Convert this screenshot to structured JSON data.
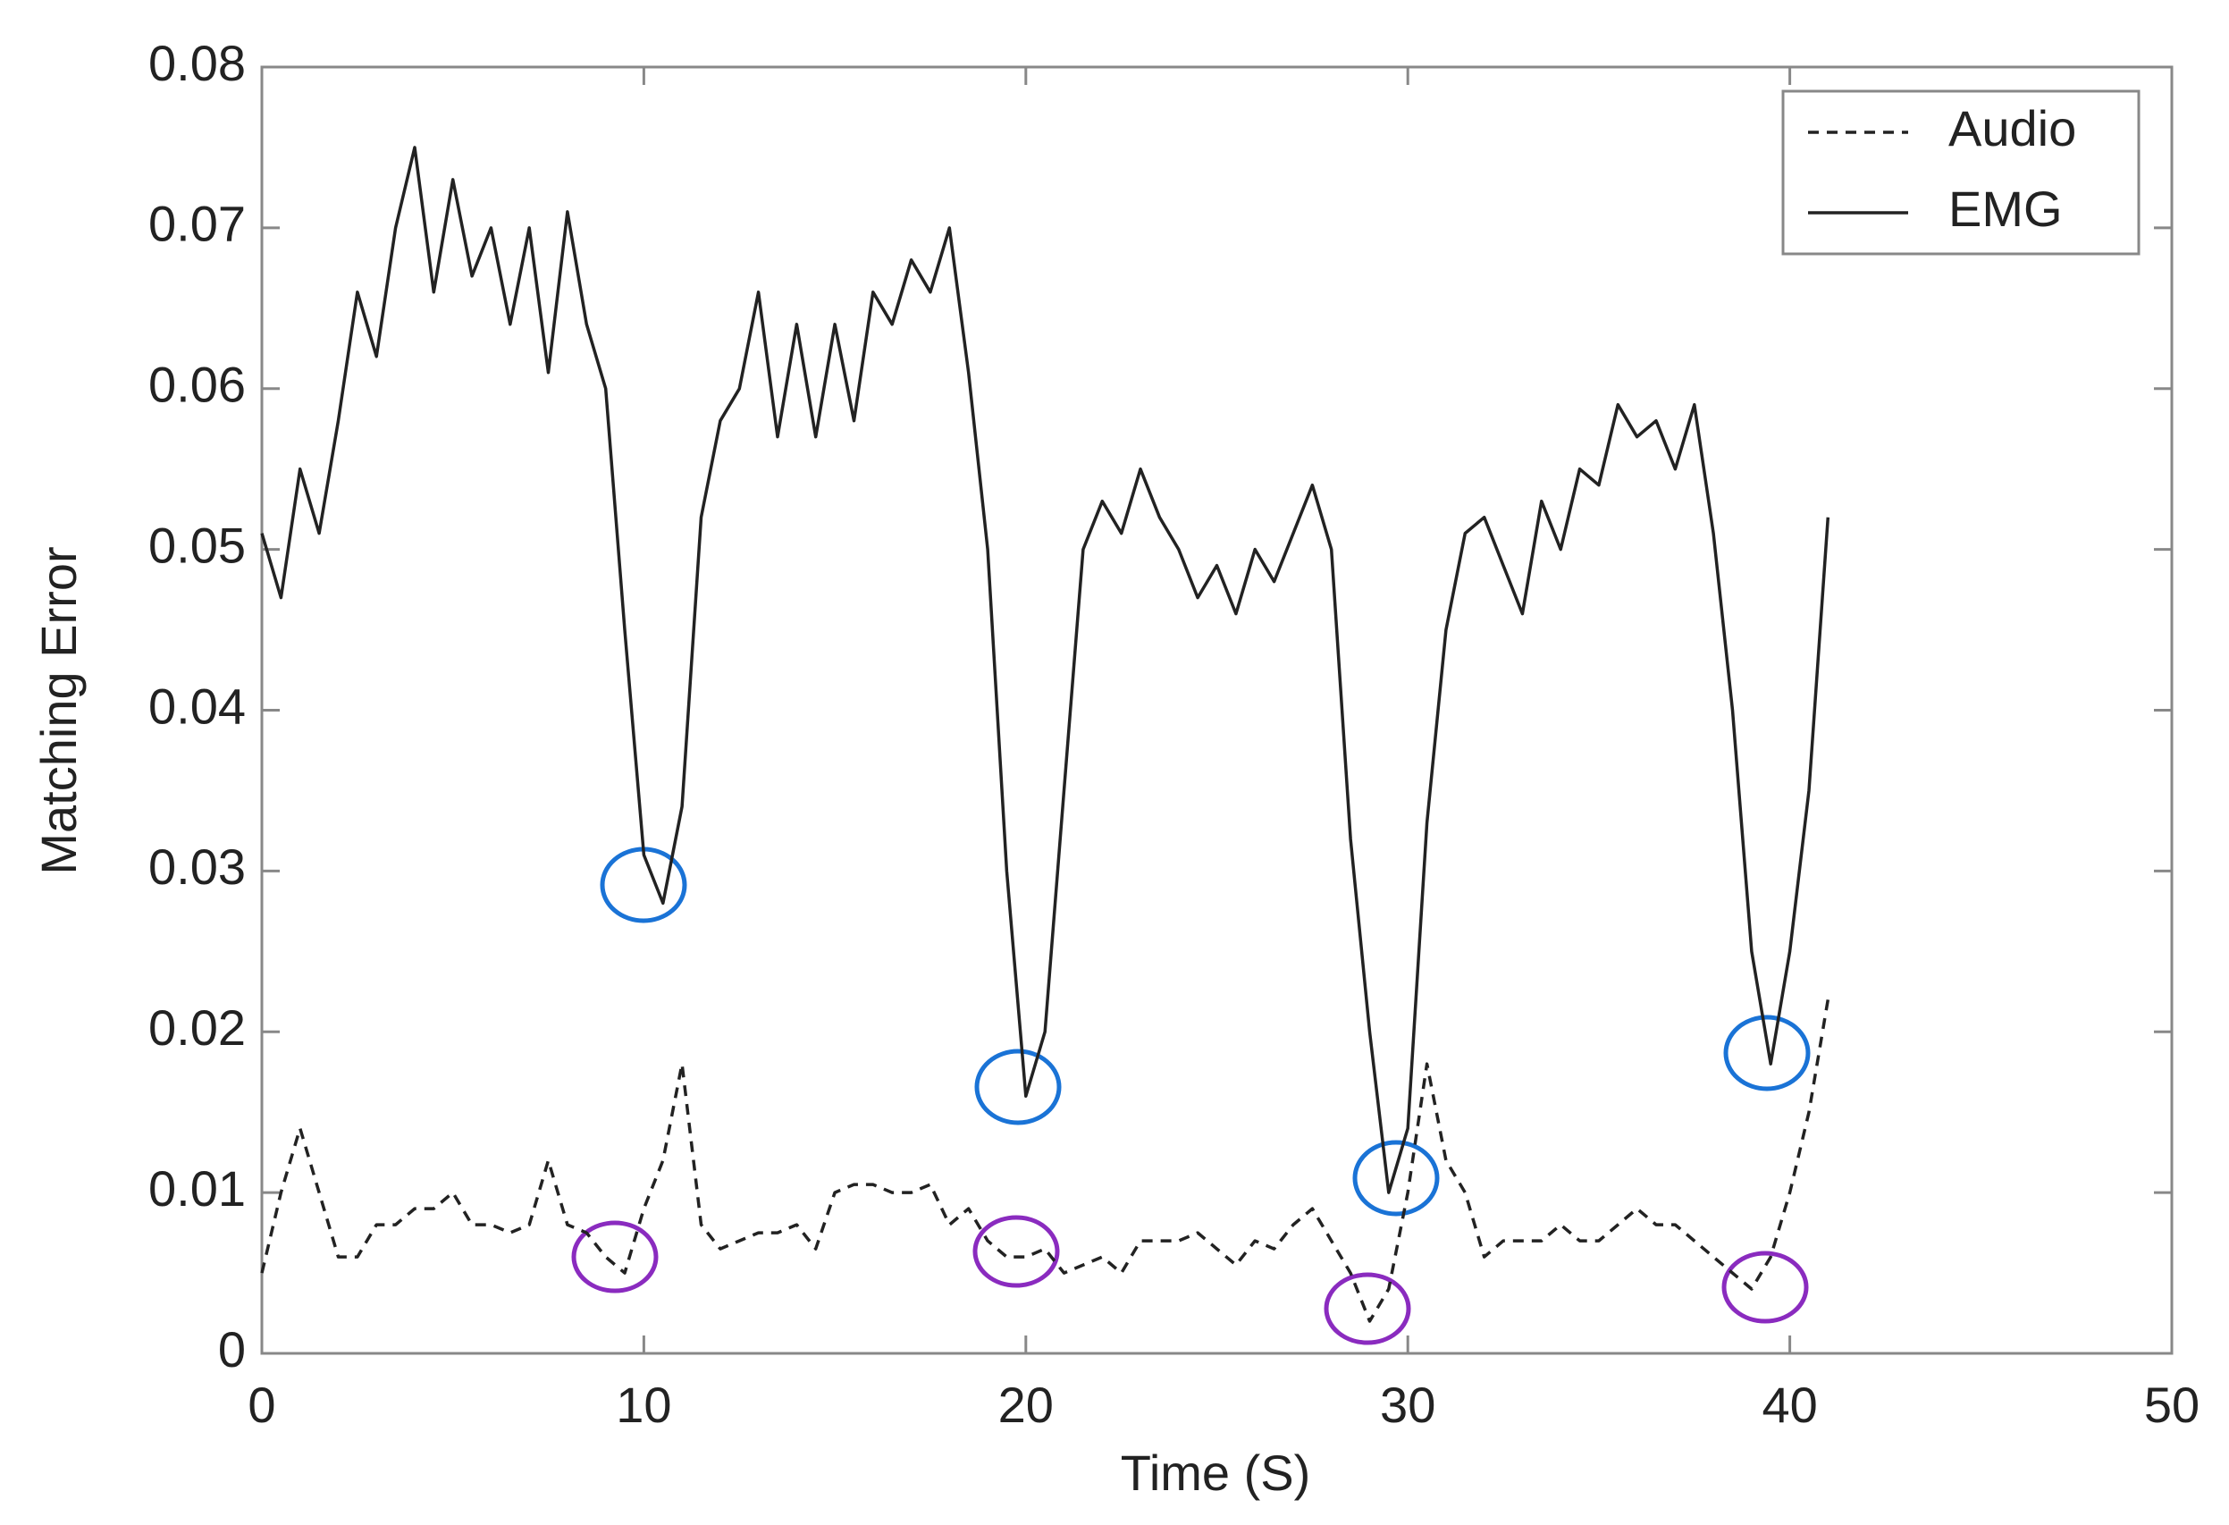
{
  "chart_data": {
    "type": "line",
    "x_label": "Time (S)",
    "y_label": "Matching Error",
    "x": [
      0,
      0.5,
      1,
      1.5,
      2,
      2.5,
      3,
      3.5,
      4,
      4.5,
      5,
      5.5,
      6,
      6.5,
      7,
      7.5,
      8,
      8.5,
      9,
      9.5,
      10,
      10.5,
      11,
      11.5,
      12,
      12.5,
      13,
      13.5,
      14,
      14.5,
      15,
      15.5,
      16,
      16.5,
      17,
      17.5,
      18,
      18.5,
      19,
      19.5,
      20,
      20.5,
      21,
      21.5,
      22,
      22.5,
      23,
      23.5,
      24,
      24.5,
      25,
      25.5,
      26,
      26.5,
      27,
      27.5,
      28,
      28.5,
      29,
      29.5,
      30,
      30.5,
      31,
      31.5,
      32,
      32.5,
      33,
      33.5,
      34,
      34.5,
      35,
      35.5,
      36,
      36.5,
      37,
      37.5,
      38,
      38.5,
      39,
      39.5,
      40,
      40.5,
      41
    ],
    "series": [
      {
        "name": "Audio",
        "color": "#222222",
        "dash": true,
        "values": [
          0.005,
          0.01,
          0.014,
          0.01,
          0.006,
          0.006,
          0.008,
          0.008,
          0.009,
          0.009,
          0.01,
          0.008,
          0.008,
          0.0075,
          0.008,
          0.012,
          0.008,
          0.0075,
          0.006,
          0.005,
          0.009,
          0.012,
          0.018,
          0.008,
          0.0065,
          0.007,
          0.0075,
          0.0075,
          0.008,
          0.0065,
          0.01,
          0.0105,
          0.0105,
          0.01,
          0.01,
          0.0105,
          0.008,
          0.009,
          0.007,
          0.006,
          0.006,
          0.0065,
          0.005,
          0.0055,
          0.006,
          0.005,
          0.007,
          0.007,
          0.007,
          0.0075,
          0.0065,
          0.0055,
          0.007,
          0.0065,
          0.008,
          0.009,
          0.007,
          0.005,
          0.002,
          0.004,
          0.01,
          0.018,
          0.012,
          0.01,
          0.006,
          0.007,
          0.007,
          0.007,
          0.008,
          0.007,
          0.007,
          0.008,
          0.009,
          0.008,
          0.008,
          0.007,
          0.006,
          0.005,
          0.004,
          0.006,
          0.01,
          0.015,
          0.022
        ]
      },
      {
        "name": "EMG",
        "color": "#222222",
        "dash": false,
        "values": [
          0.051,
          0.047,
          0.055,
          0.051,
          0.058,
          0.066,
          0.062,
          0.07,
          0.075,
          0.066,
          0.073,
          0.067,
          0.07,
          0.064,
          0.07,
          0.061,
          0.071,
          0.064,
          0.06,
          0.045,
          0.031,
          0.028,
          0.034,
          0.052,
          0.058,
          0.06,
          0.066,
          0.057,
          0.064,
          0.057,
          0.064,
          0.058,
          0.066,
          0.064,
          0.068,
          0.066,
          0.07,
          0.061,
          0.05,
          0.03,
          0.016,
          0.02,
          0.035,
          0.05,
          0.053,
          0.051,
          0.055,
          0.052,
          0.05,
          0.047,
          0.049,
          0.046,
          0.05,
          0.048,
          0.051,
          0.054,
          0.05,
          0.032,
          0.02,
          0.01,
          0.014,
          0.033,
          0.045,
          0.051,
          0.052,
          0.049,
          0.046,
          0.053,
          0.05,
          0.055,
          0.054,
          0.059,
          0.057,
          0.058,
          0.055,
          0.059,
          0.051,
          0.04,
          0.025,
          0.018,
          0.025,
          0.035,
          0.052
        ]
      }
    ],
    "xlim": [
      0,
      50
    ],
    "xticks": [
      0,
      10,
      20,
      30,
      40,
      50
    ],
    "ylim": [
      0,
      0.08
    ],
    "yticks": [
      0,
      0.01,
      0.02,
      0.03,
      0.04,
      0.05,
      0.06,
      0.07,
      0.08
    ],
    "grid": false,
    "legend": "top-right"
  }
}
